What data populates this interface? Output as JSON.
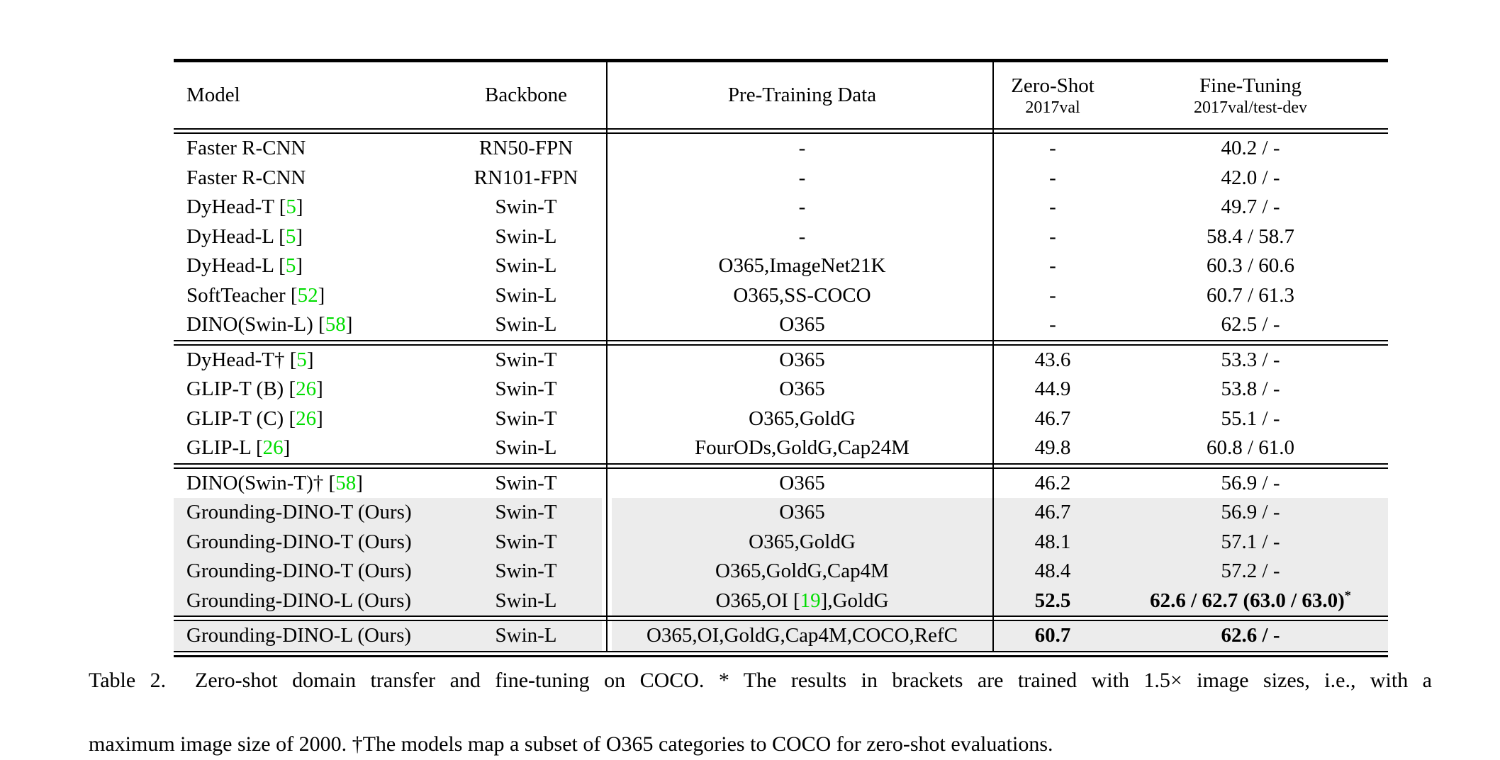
{
  "colors": {
    "citation_green": "#00dd00",
    "row_highlight_gray": "#ececec",
    "rule_black": "#000000",
    "page_background": "#ffffff"
  },
  "table": {
    "headers": {
      "model": "Model",
      "backbone": "Backbone",
      "pretrain": "Pre-Training Data",
      "zeroshot_title": "Zero-Shot",
      "zeroshot_sub": "2017val",
      "finetune_title": "Fine-Tuning",
      "finetune_sub": "2017val/test-dev"
    },
    "groups": [
      {
        "rows": [
          {
            "model_pre": "Faster R-CNN",
            "model_cite": "",
            "model_post": "",
            "backbone": "RN50-FPN",
            "pretrain_pre": "-",
            "pretrain_cite": "",
            "pretrain_post": "",
            "zeroshot": "-",
            "finetune": "40.2 / -",
            "finetune_sup": "",
            "highlight": false,
            "bold": false
          },
          {
            "model_pre": "Faster R-CNN",
            "model_cite": "",
            "model_post": "",
            "backbone": "RN101-FPN",
            "pretrain_pre": "-",
            "pretrain_cite": "",
            "pretrain_post": "",
            "zeroshot": "-",
            "finetune": "42.0 / -",
            "finetune_sup": "",
            "highlight": false,
            "bold": false
          },
          {
            "model_pre": "DyHead-T [",
            "model_cite": "5",
            "model_post": "]",
            "backbone": "Swin-T",
            "pretrain_pre": "-",
            "pretrain_cite": "",
            "pretrain_post": "",
            "zeroshot": "-",
            "finetune": "49.7 / -",
            "finetune_sup": "",
            "highlight": false,
            "bold": false
          },
          {
            "model_pre": "DyHead-L [",
            "model_cite": "5",
            "model_post": "]",
            "backbone": "Swin-L",
            "pretrain_pre": "-",
            "pretrain_cite": "",
            "pretrain_post": "",
            "zeroshot": "-",
            "finetune": "58.4 / 58.7",
            "finetune_sup": "",
            "highlight": false,
            "bold": false
          },
          {
            "model_pre": "DyHead-L [",
            "model_cite": "5",
            "model_post": "]",
            "backbone": "Swin-L",
            "pretrain_pre": "O365,ImageNet21K",
            "pretrain_cite": "",
            "pretrain_post": "",
            "zeroshot": "-",
            "finetune": "60.3 / 60.6",
            "finetune_sup": "",
            "highlight": false,
            "bold": false
          },
          {
            "model_pre": "SoftTeacher [",
            "model_cite": "52",
            "model_post": "]",
            "backbone": "Swin-L",
            "pretrain_pre": "O365,SS-COCO",
            "pretrain_cite": "",
            "pretrain_post": "",
            "zeroshot": "-",
            "finetune": "60.7 / 61.3",
            "finetune_sup": "",
            "highlight": false,
            "bold": false
          },
          {
            "model_pre": "DINO(Swin-L) [",
            "model_cite": "58",
            "model_post": "]",
            "backbone": "Swin-L",
            "pretrain_pre": "O365",
            "pretrain_cite": "",
            "pretrain_post": "",
            "zeroshot": "-",
            "finetune": "62.5 / -",
            "finetune_sup": "",
            "highlight": false,
            "bold": false
          }
        ]
      },
      {
        "rows": [
          {
            "model_pre": "DyHead-T† [",
            "model_cite": "5",
            "model_post": "]",
            "backbone": "Swin-T",
            "pretrain_pre": "O365",
            "pretrain_cite": "",
            "pretrain_post": "",
            "zeroshot": "43.6",
            "finetune": "53.3 / -",
            "finetune_sup": "",
            "highlight": false,
            "bold": false
          },
          {
            "model_pre": "GLIP-T (B) [",
            "model_cite": "26",
            "model_post": "]",
            "backbone": "Swin-T",
            "pretrain_pre": "O365",
            "pretrain_cite": "",
            "pretrain_post": "",
            "zeroshot": "44.9",
            "finetune": "53.8 / -",
            "finetune_sup": "",
            "highlight": false,
            "bold": false
          },
          {
            "model_pre": "GLIP-T (C) [",
            "model_cite": "26",
            "model_post": "]",
            "backbone": "Swin-T",
            "pretrain_pre": "O365,GoldG",
            "pretrain_cite": "",
            "pretrain_post": "",
            "zeroshot": "46.7",
            "finetune": "55.1 / -",
            "finetune_sup": "",
            "highlight": false,
            "bold": false
          },
          {
            "model_pre": "GLIP-L [",
            "model_cite": "26",
            "model_post": "]",
            "backbone": "Swin-L",
            "pretrain_pre": "FourODs,GoldG,Cap24M",
            "pretrain_cite": "",
            "pretrain_post": "",
            "zeroshot": "49.8",
            "finetune": "60.8 / 61.0",
            "finetune_sup": "",
            "highlight": false,
            "bold": false
          }
        ]
      },
      {
        "rows": [
          {
            "model_pre": "DINO(Swin-T)† [",
            "model_cite": "58",
            "model_post": "]",
            "backbone": "Swin-T",
            "pretrain_pre": "O365",
            "pretrain_cite": "",
            "pretrain_post": "",
            "zeroshot": "46.2",
            "finetune": "56.9 / -",
            "finetune_sup": "",
            "highlight": false,
            "bold": false
          },
          {
            "model_pre": "Grounding-DINO-T (Ours)",
            "model_cite": "",
            "model_post": "",
            "backbone": "Swin-T",
            "pretrain_pre": "O365",
            "pretrain_cite": "",
            "pretrain_post": "",
            "zeroshot": "46.7",
            "finetune": "56.9 / -",
            "finetune_sup": "",
            "highlight": true,
            "bold": false
          },
          {
            "model_pre": "Grounding-DINO-T (Ours)",
            "model_cite": "",
            "model_post": "",
            "backbone": "Swin-T",
            "pretrain_pre": "O365,GoldG",
            "pretrain_cite": "",
            "pretrain_post": "",
            "zeroshot": "48.1",
            "finetune": "57.1 / -",
            "finetune_sup": "",
            "highlight": true,
            "bold": false
          },
          {
            "model_pre": "Grounding-DINO-T (Ours)",
            "model_cite": "",
            "model_post": "",
            "backbone": "Swin-T",
            "pretrain_pre": "O365,GoldG,Cap4M",
            "pretrain_cite": "",
            "pretrain_post": "",
            "zeroshot": "48.4",
            "finetune": "57.2 / -",
            "finetune_sup": "",
            "highlight": true,
            "bold": false
          },
          {
            "model_pre": "Grounding-DINO-L (Ours)",
            "model_cite": "",
            "model_post": "",
            "backbone": "Swin-L",
            "pretrain_pre": "O365,OI [",
            "pretrain_cite": "19",
            "pretrain_post": "],GoldG",
            "zeroshot": "52.5",
            "finetune": "62.6 / 62.7 (63.0 / 63.0)",
            "finetune_sup": "*",
            "highlight": true,
            "bold": true
          }
        ]
      },
      {
        "rows": [
          {
            "model_pre": "Grounding-DINO-L (Ours)",
            "model_cite": "",
            "model_post": "",
            "backbone": "Swin-L",
            "pretrain_pre": "O365,OI,GoldG,Cap4M,COCO,RefC",
            "pretrain_cite": "",
            "pretrain_post": "",
            "zeroshot": "60.7",
            "finetune": "62.6 / -",
            "finetune_sup": "",
            "highlight": true,
            "bold": true
          }
        ]
      }
    ]
  },
  "caption": {
    "line1": "Table 2.  Zero-shot domain transfer and fine-tuning on COCO. * The results in brackets are trained with 1.5× image sizes, i.e., with a",
    "line2": "maximum image size of 2000. †The models map a subset of O365 categories to COCO for zero-shot evaluations."
  }
}
